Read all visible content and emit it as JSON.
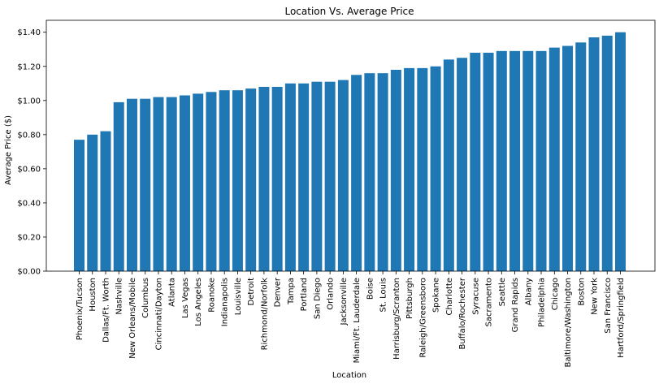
{
  "chart_data": {
    "type": "bar",
    "title": "Location Vs. Average Price",
    "xlabel": "Location",
    "ylabel": "Average Price ($)",
    "ylim": [
      0,
      1.47
    ],
    "yticks": [
      0,
      0.2,
      0.4,
      0.6,
      0.8,
      1.0,
      1.2,
      1.4
    ],
    "ytick_labels": [
      "$0.00",
      "$0.20",
      "$0.40",
      "$0.60",
      "$0.80",
      "$1.00",
      "$1.20",
      "$1.40"
    ],
    "grid": false,
    "bar_color": "#1f77b4",
    "categories": [
      "Phoenix/Tucson",
      "Houston",
      "Dallas/Ft. Worth",
      "Nashville",
      "New Orleans/Mobile",
      "Columbus",
      "Cincinnati/Dayton",
      "Atlanta",
      "Las Vegas",
      "Los Angeles",
      "Roanoke",
      "Indianapolis",
      "Louisville",
      "Detroit",
      "Richmond/Norfolk",
      "Denver",
      "Tampa",
      "Portland",
      "San Diego",
      "Orlando",
      "Jacksonville",
      "Miami/Ft. Lauderdale",
      "Boise",
      "St. Louis",
      "Harrisburg/Scranton",
      "Pittsburgh",
      "Raleigh/Greensboro",
      "Spokane",
      "Charlotte",
      "Buffalo/Rochester",
      "Syracuse",
      "Sacramento",
      "Seattle",
      "Grand Rapids",
      "Albany",
      "Philadelphia",
      "Chicago",
      "Baltimore/Washington",
      "Boston",
      "New York",
      "San Francisco",
      "Hartford/Springfield"
    ],
    "values": [
      0.77,
      0.8,
      0.82,
      0.99,
      1.01,
      1.01,
      1.02,
      1.02,
      1.03,
      1.04,
      1.05,
      1.06,
      1.06,
      1.07,
      1.08,
      1.08,
      1.1,
      1.1,
      1.11,
      1.11,
      1.12,
      1.15,
      1.16,
      1.16,
      1.18,
      1.19,
      1.19,
      1.2,
      1.24,
      1.25,
      1.28,
      1.28,
      1.29,
      1.29,
      1.29,
      1.29,
      1.31,
      1.32,
      1.34,
      1.37,
      1.38,
      1.4
    ]
  }
}
